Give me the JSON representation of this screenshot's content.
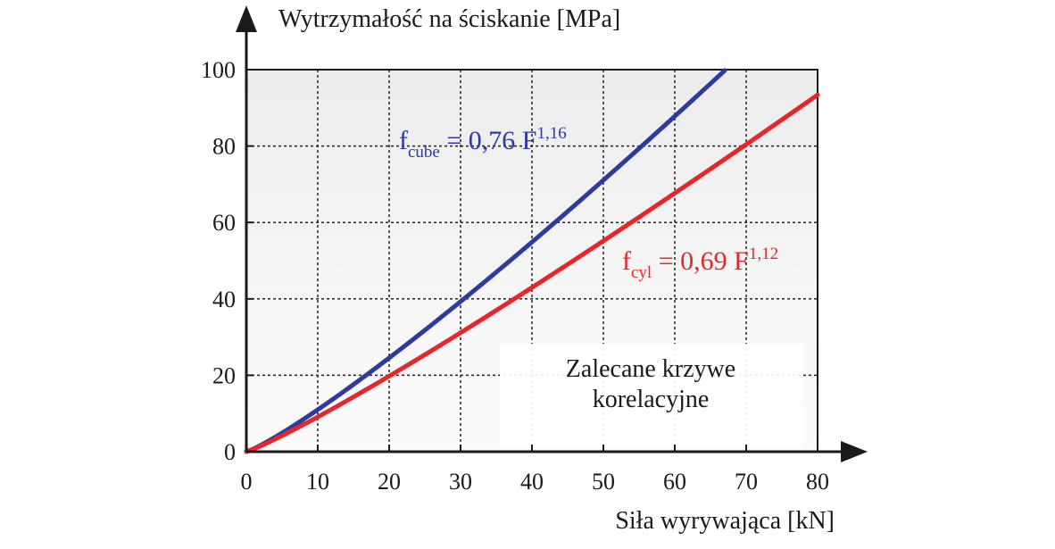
{
  "chart_data": {
    "type": "line",
    "x_axis": {
      "label": "Siła wyrywająca [kN]",
      "ticks": [
        "0",
        "10",
        "20",
        "30",
        "40",
        "50",
        "60",
        "70",
        "80"
      ],
      "range": [
        0,
        80
      ]
    },
    "y_axis": {
      "label": "Wytrzymałość na ściskanie [MPa]",
      "ticks": [
        "0",
        "20",
        "40",
        "60",
        "80",
        "100"
      ],
      "range": [
        0,
        100
      ]
    },
    "grid": true,
    "series": [
      {
        "name": "f_cube",
        "formula": {
          "base": "f",
          "subscript": "cube",
          "equals": " = 0,76 F",
          "exponent": "1,16"
        },
        "coefficient": 0.76,
        "exponent": 1.16,
        "color": "#2e3a9e",
        "points": [
          [
            0,
            0
          ],
          [
            10,
            10.96
          ],
          [
            20,
            24.48
          ],
          [
            30,
            39.2
          ],
          [
            40,
            54.7
          ],
          [
            50,
            70.84
          ],
          [
            60,
            87.53
          ],
          [
            67,
            99.52
          ]
        ]
      },
      {
        "name": "f_cyl",
        "formula": {
          "base": "f",
          "subscript": "cyl",
          "equals": " = 0,69 F",
          "exponent": "1,12"
        },
        "coefficient": 0.69,
        "exponent": 1.12,
        "color": "#e8262a",
        "points": [
          [
            0,
            0
          ],
          [
            10,
            9.09
          ],
          [
            20,
            19.78
          ],
          [
            30,
            31.17
          ],
          [
            40,
            43.07
          ],
          [
            50,
            55.39
          ],
          [
            60,
            68.07
          ],
          [
            70,
            81.07
          ],
          [
            80,
            94.35
          ]
        ]
      }
    ],
    "annotation": [
      "Zalecane krzywe",
      "korelacyjne"
    ]
  }
}
